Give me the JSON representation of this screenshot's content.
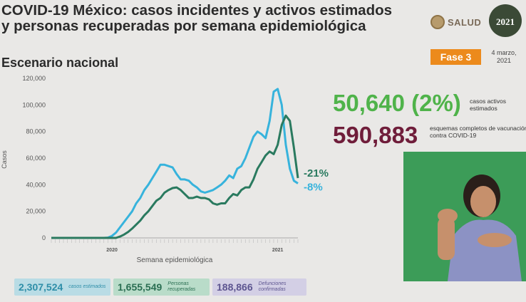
{
  "header": {
    "title": "COVID-19 México: casos incidentes y activos estimados y personas recuperadas por semana epidemiológica",
    "subtitle": "Escenario nacional",
    "logo_text": "SALUD",
    "badge_year": "2021",
    "phase": "Fase 3",
    "date": "4 marzo, 2021"
  },
  "stats": {
    "active_value": "50,640 (2%)",
    "active_label": "casos activos estimados",
    "vaccination_value": "590,883",
    "vaccination_label": "esquemas completos de vacunación contra COVID-19"
  },
  "summary": {
    "estimated_value": "2,307,524",
    "estimated_label": "casos estimados",
    "recovered_value": "1,655,549",
    "recovered_label": "Personas recuperadas",
    "deaths_value": "188,866",
    "deaths_label": "Defunciones confirmadas"
  },
  "colors": {
    "estimated": "#37b3dc",
    "recovered": "#2a7a5f",
    "phase": "#ec8a1c",
    "active": "#4fb34a",
    "vaccination": "#6f1d3a"
  },
  "chart_data": {
    "type": "line",
    "xlabel": "Semana epidemiológica",
    "ylabel": "Casos",
    "ylim": [
      0,
      120000
    ],
    "yticks": [
      "0",
      "20,000",
      "40,000",
      "60,000",
      "80,000",
      "100,000",
      "120,000"
    ],
    "x_year_labels": [
      "2020",
      "2021"
    ],
    "x_year_label_weeks": [
      15,
      56
    ],
    "grid": false,
    "series": [
      {
        "color_key": "estimated",
        "change_label": "-8%",
        "values": [
          0,
          0,
          0,
          0,
          0,
          0,
          0,
          0,
          0,
          0,
          0,
          0,
          0,
          0,
          200,
          1500,
          4000,
          8000,
          12000,
          16000,
          20000,
          26000,
          30000,
          36000,
          40000,
          45000,
          50000,
          55000,
          55000,
          54000,
          53000,
          48000,
          44000,
          44000,
          43000,
          40000,
          38000,
          35000,
          34000,
          35000,
          36000,
          38000,
          40000,
          43000,
          47000,
          45000,
          52000,
          54000,
          60000,
          68000,
          76000,
          80000,
          78000,
          75000,
          88000,
          110000,
          112000,
          100000,
          70000,
          52000,
          43000,
          41000
        ]
      },
      {
        "color_key": "recovered",
        "change_label": "-21%",
        "values": [
          0,
          0,
          0,
          0,
          0,
          0,
          0,
          0,
          0,
          0,
          0,
          0,
          0,
          0,
          0,
          0,
          0,
          1000,
          2500,
          4500,
          7000,
          10000,
          13000,
          17000,
          20000,
          24000,
          28000,
          30000,
          34000,
          36000,
          37500,
          38000,
          36000,
          33000,
          30000,
          30000,
          31000,
          30000,
          30000,
          29000,
          26000,
          25000,
          26000,
          26000,
          30000,
          33000,
          32000,
          36000,
          38000,
          38000,
          44000,
          52000,
          57000,
          62000,
          65000,
          63000,
          70000,
          85000,
          92000,
          88000,
          68000,
          45000
        ]
      }
    ]
  }
}
